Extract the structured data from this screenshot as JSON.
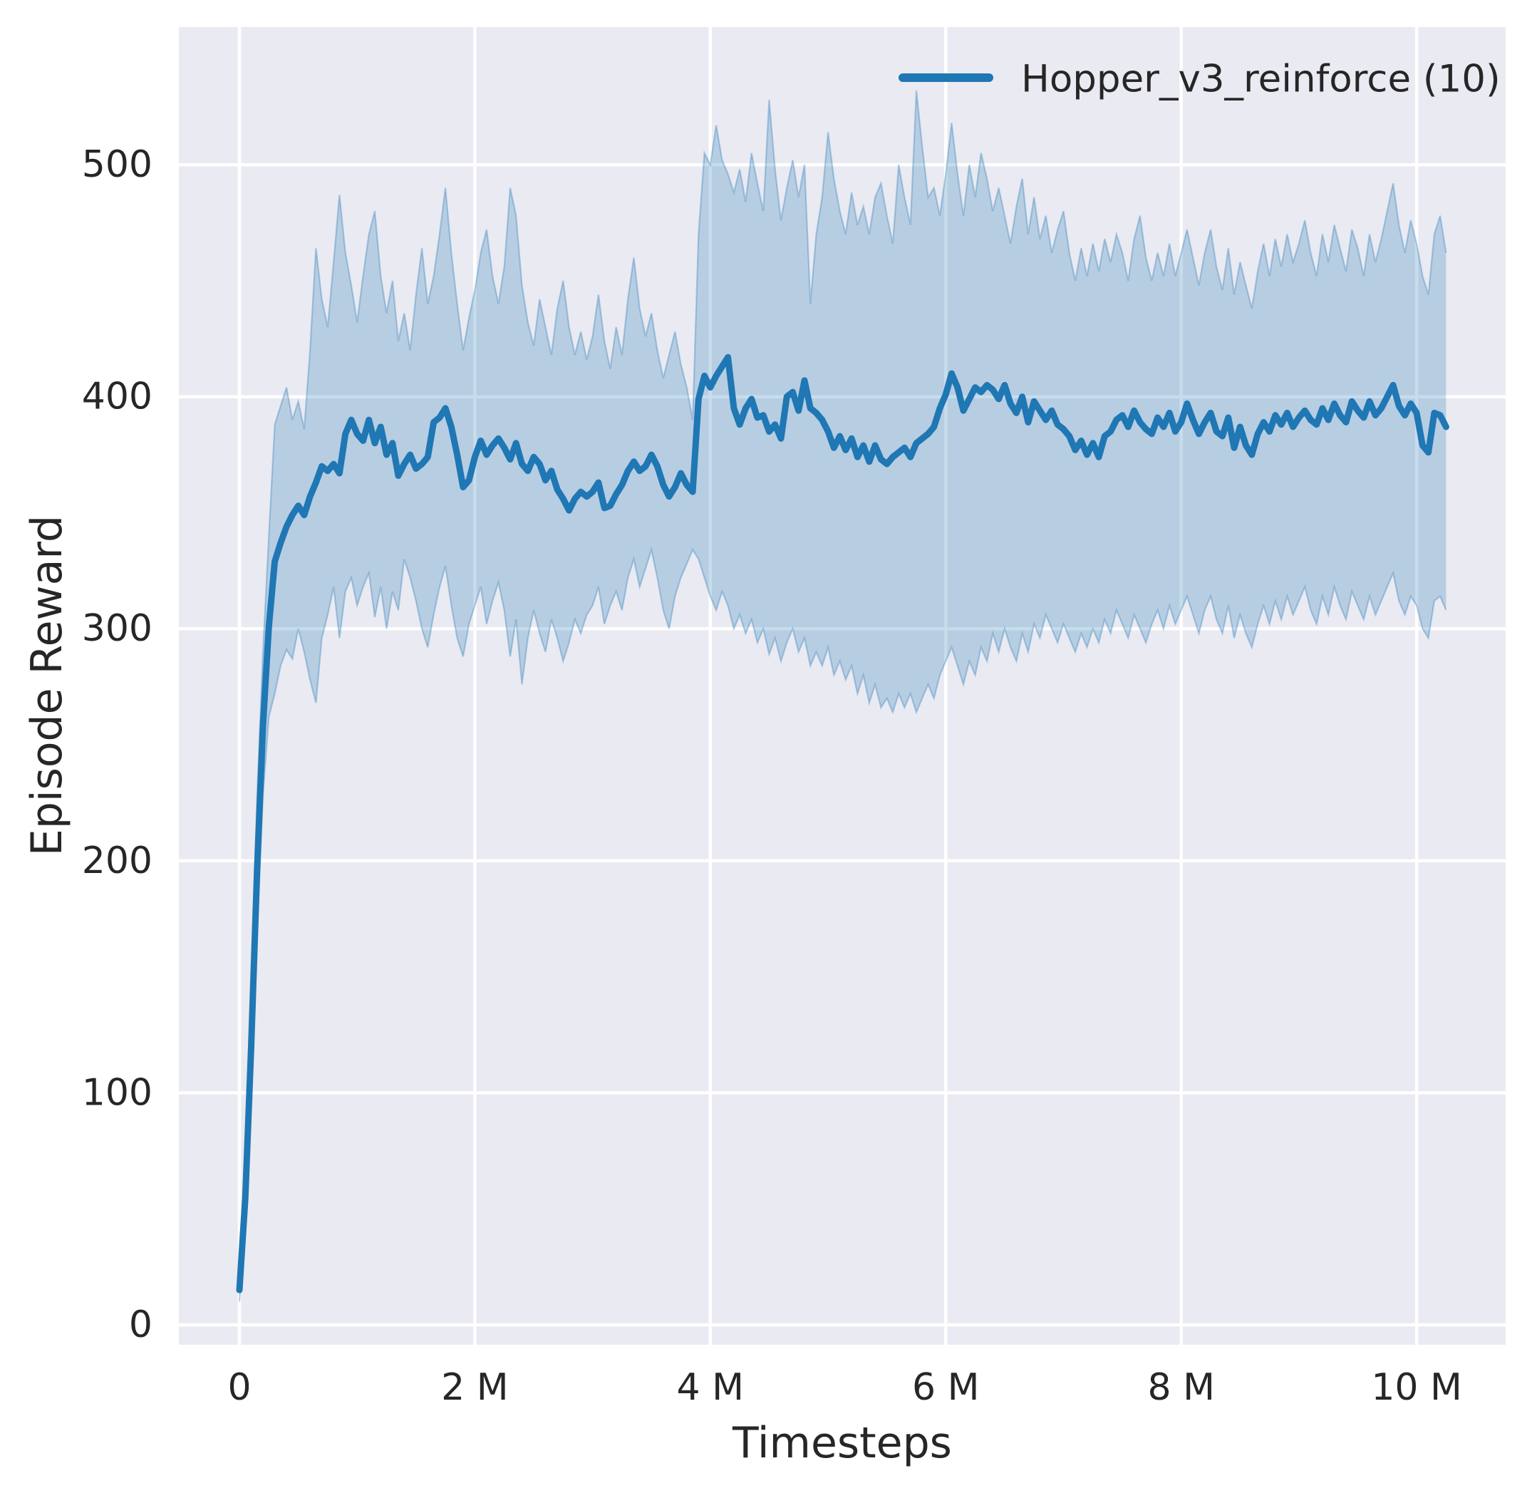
{
  "chart_data": {
    "type": "line",
    "title": "",
    "xlabel": "Timesteps",
    "ylabel": "Episode Reward",
    "grid": true,
    "legend_position": "upper right",
    "x_unit": "millions of timesteps",
    "xlim_millions": [
      -0.5145,
      10.756
    ],
    "ylim": [
      -8.6,
      559.3
    ],
    "xticks": [
      {
        "value": 0,
        "label": "0"
      },
      {
        "value": 2,
        "label": "2 M"
      },
      {
        "value": 4,
        "label": "4 M"
      },
      {
        "value": 6,
        "label": "6 M"
      },
      {
        "value": 8,
        "label": "8 M"
      },
      {
        "value": 10,
        "label": "10 M"
      }
    ],
    "yticks": [
      {
        "value": 0,
        "label": "0"
      },
      {
        "value": 100,
        "label": "100"
      },
      {
        "value": 200,
        "label": "200"
      },
      {
        "value": 300,
        "label": "300"
      },
      {
        "value": 400,
        "label": "400"
      },
      {
        "value": 500,
        "label": "500"
      }
    ],
    "x_start": 0,
    "x_step": 0.05,
    "series": [
      {
        "name": "Hopper_v3_reinforce (10)",
        "color": "#1f77b4",
        "band_fill": "rgba(31,119,180,0.25)",
        "band_edge": "rgba(31,119,180,0.32)",
        "mean": [
          15,
          55,
          120,
          196,
          258,
          301,
          329,
          337,
          344,
          349,
          353,
          349,
          357,
          363,
          370,
          368,
          371,
          367,
          384,
          390,
          384,
          381,
          390,
          380,
          387,
          375,
          380,
          366,
          371,
          375,
          369,
          371,
          374,
          389,
          391,
          395,
          387,
          375,
          361,
          364,
          374,
          381,
          375,
          379,
          382,
          378,
          373,
          380,
          371,
          368,
          374,
          371,
          364,
          368,
          360,
          356,
          351,
          356,
          359,
          357,
          359,
          363,
          352,
          353,
          358,
          362,
          368,
          372,
          368,
          370,
          375,
          370,
          362,
          357,
          361,
          367,
          362,
          359,
          399,
          409,
          404,
          409,
          413,
          417,
          395,
          388,
          395,
          399,
          391,
          392,
          385,
          388,
          382,
          400,
          402,
          394,
          407,
          395,
          393,
          390,
          385,
          378,
          383,
          377,
          382,
          374,
          379,
          372,
          379,
          373,
          371,
          374,
          376,
          378,
          374,
          380,
          382,
          384,
          387,
          395,
          401,
          410,
          404,
          394,
          399,
          404,
          402,
          405,
          403,
          399,
          405,
          397,
          393,
          400,
          389,
          398,
          394,
          390,
          394,
          388,
          386,
          383,
          377,
          381,
          375,
          380,
          374,
          383,
          385,
          390,
          392,
          387,
          394,
          389,
          386,
          384,
          391,
          387,
          393,
          385,
          389,
          397,
          390,
          384,
          389,
          393,
          385,
          383,
          391,
          378,
          387,
          379,
          375,
          384,
          389,
          385,
          392,
          388,
          393,
          387,
          391,
          394,
          390,
          388,
          395,
          390,
          397,
          392,
          389,
          398,
          394,
          391,
          398,
          392,
          395,
          400,
          405,
          396,
          392,
          397,
          393,
          379,
          376,
          393,
          392,
          387
        ],
        "band_lower": [
          10,
          42,
          100,
          168,
          228,
          262,
          272,
          284,
          291,
          287,
          300,
          290,
          278,
          268,
          296,
          306,
          318,
          296,
          316,
          322,
          310,
          318,
          324,
          305,
          318,
          300,
          316,
          308,
          330,
          322,
          312,
          300,
          292,
          306,
          318,
          327,
          310,
          296,
          288,
          302,
          310,
          318,
          302,
          312,
          320,
          308,
          288,
          304,
          276,
          296,
          308,
          298,
          290,
          304,
          296,
          286,
          294,
          304,
          298,
          306,
          310,
          318,
          302,
          310,
          316,
          308,
          322,
          330,
          318,
          326,
          334,
          322,
          308,
          300,
          314,
          322,
          328,
          334,
          330,
          322,
          314,
          308,
          316,
          310,
          300,
          306,
          298,
          304,
          294,
          300,
          289,
          296,
          286,
          294,
          300,
          290,
          296,
          284,
          290,
          284,
          292,
          280,
          286,
          278,
          284,
          272,
          280,
          268,
          276,
          266,
          270,
          264,
          272,
          266,
          272,
          264,
          270,
          276,
          270,
          280,
          286,
          292,
          284,
          276,
          286,
          280,
          292,
          286,
          298,
          290,
          300,
          292,
          286,
          298,
          290,
          302,
          296,
          306,
          300,
          294,
          302,
          296,
          290,
          298,
          292,
          300,
          294,
          304,
          298,
          308,
          302,
          296,
          306,
          300,
          294,
          302,
          308,
          300,
          310,
          302,
          308,
          314,
          306,
          298,
          308,
          314,
          304,
          298,
          310,
          296,
          306,
          298,
          292,
          302,
          310,
          302,
          312,
          304,
          314,
          306,
          312,
          318,
          308,
          302,
          314,
          306,
          318,
          310,
          304,
          316,
          310,
          304,
          314,
          306,
          312,
          318,
          324,
          312,
          306,
          314,
          310,
          300,
          296,
          312,
          314,
          308
        ],
        "band_upper": [
          22,
          70,
          145,
          228,
          290,
          340,
          388,
          396,
          404,
          390,
          398,
          386,
          420,
          464,
          442,
          430,
          458,
          487,
          462,
          448,
          432,
          452,
          470,
          480,
          452,
          436,
          450,
          424,
          436,
          420,
          444,
          464,
          440,
          452,
          470,
          490,
          462,
          440,
          420,
          434,
          446,
          462,
          472,
          452,
          440,
          456,
          490,
          478,
          448,
          432,
          422,
          442,
          430,
          418,
          438,
          450,
          430,
          418,
          428,
          416,
          426,
          444,
          424,
          412,
          430,
          418,
          442,
          460,
          438,
          426,
          436,
          420,
          408,
          418,
          428,
          414,
          404,
          390,
          470,
          505,
          500,
          517,
          502,
          496,
          488,
          498,
          484,
          505,
          492,
          480,
          528,
          498,
          476,
          490,
          502,
          486,
          500,
          440,
          470,
          486,
          514,
          494,
          480,
          470,
          488,
          474,
          482,
          470,
          486,
          492,
          478,
          466,
          500,
          486,
          474,
          532,
          508,
          486,
          490,
          478,
          496,
          518,
          496,
          478,
          500,
          486,
          505,
          494,
          480,
          490,
          478,
          466,
          482,
          494,
          470,
          486,
          468,
          478,
          462,
          472,
          480,
          462,
          450,
          464,
          452,
          466,
          454,
          468,
          458,
          470,
          462,
          450,
          468,
          478,
          460,
          450,
          462,
          452,
          466,
          452,
          462,
          472,
          460,
          448,
          462,
          472,
          456,
          446,
          464,
          444,
          458,
          448,
          438,
          454,
          466,
          452,
          468,
          456,
          470,
          458,
          466,
          476,
          462,
          452,
          470,
          458,
          474,
          464,
          454,
          472,
          464,
          452,
          470,
          458,
          468,
          480,
          492,
          474,
          462,
          476,
          466,
          452,
          444,
          470,
          478,
          462
        ]
      }
    ]
  },
  "colors": {
    "figure_background": "#ffffff",
    "plot_background": "#eaeaf2",
    "grid": "#ffffff",
    "tick_text": "#262626"
  }
}
